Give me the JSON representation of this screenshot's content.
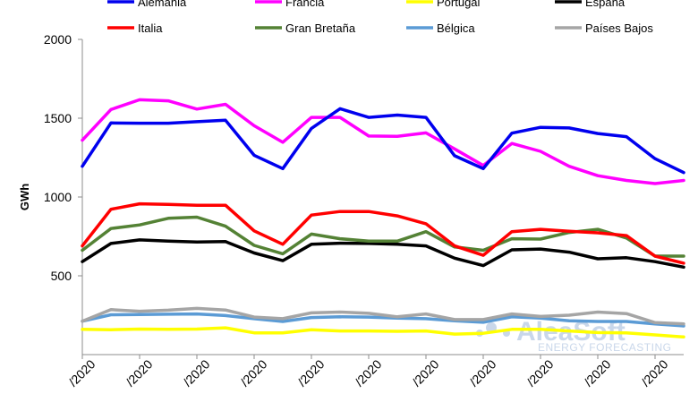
{
  "chart_data": {
    "type": "line",
    "title": "",
    "xlabel": "",
    "ylabel": "GWh",
    "ylim": [
      0,
      2000
    ],
    "yticks": [
      500,
      1000,
      1500,
      2000
    ],
    "x_tick_labels": [
      "/2020",
      "/2020",
      "/2020",
      "/2020",
      "/2020",
      "/2020",
      "/2020",
      "/2020",
      "/2020",
      "/2020",
      "/2020"
    ],
    "grid": false,
    "legend_position": "top",
    "series": [
      {
        "name": "Alemania",
        "color": "#0000ee",
        "values": [
          1195,
          1470,
          1468,
          1468,
          1478,
          1487,
          1265,
          1180,
          1435,
          1560,
          1505,
          1520,
          1505,
          1262,
          1180,
          1405,
          1442,
          1438,
          1403,
          1383,
          1243,
          1155
        ]
      },
      {
        "name": "Francia",
        "color": "#ff00ff",
        "values": [
          1360,
          1555,
          1617,
          1610,
          1558,
          1588,
          1452,
          1347,
          1505,
          1505,
          1387,
          1385,
          1407,
          1305,
          1200,
          1340,
          1290,
          1195,
          1135,
          1105,
          1085,
          1105
        ]
      },
      {
        "name": "Portugal",
        "color": "#ffff00",
        "values": [
          160,
          158,
          162,
          160,
          162,
          170,
          138,
          138,
          158,
          150,
          150,
          148,
          150,
          130,
          135,
          160,
          160,
          150,
          140,
          138,
          125,
          112
        ]
      },
      {
        "name": "España",
        "color": "#000000",
        "values": [
          590,
          705,
          728,
          720,
          715,
          717,
          645,
          596,
          700,
          707,
          705,
          700,
          690,
          612,
          565,
          665,
          670,
          650,
          608,
          615,
          590,
          555
        ]
      },
      {
        "name": "Italia",
        "color": "#ff0000",
        "values": [
          690,
          922,
          957,
          953,
          948,
          948,
          785,
          700,
          885,
          908,
          908,
          880,
          830,
          690,
          630,
          780,
          795,
          783,
          773,
          755,
          625,
          580
        ]
      },
      {
        "name": "Gran Bretaña",
        "color": "#548235",
        "values": [
          662,
          800,
          823,
          865,
          872,
          815,
          693,
          640,
          765,
          735,
          720,
          720,
          780,
          683,
          662,
          735,
          733,
          775,
          795,
          740,
          625,
          625
        ]
      },
      {
        "name": "Bélgica",
        "color": "#5b9bd5",
        "values": [
          212,
          253,
          254,
          256,
          258,
          248,
          228,
          210,
          235,
          240,
          238,
          232,
          228,
          215,
          205,
          240,
          232,
          215,
          210,
          210,
          195,
          182
        ]
      },
      {
        "name": "Países Bajos",
        "color": "#a5a5a5",
        "values": [
          212,
          285,
          275,
          282,
          293,
          283,
          238,
          228,
          265,
          270,
          262,
          240,
          258,
          222,
          222,
          258,
          242,
          250,
          270,
          260,
          203,
          195
        ]
      }
    ]
  },
  "watermark": {
    "brand": "AleaSoft",
    "tagline": "ENERGY FORECASTING"
  }
}
